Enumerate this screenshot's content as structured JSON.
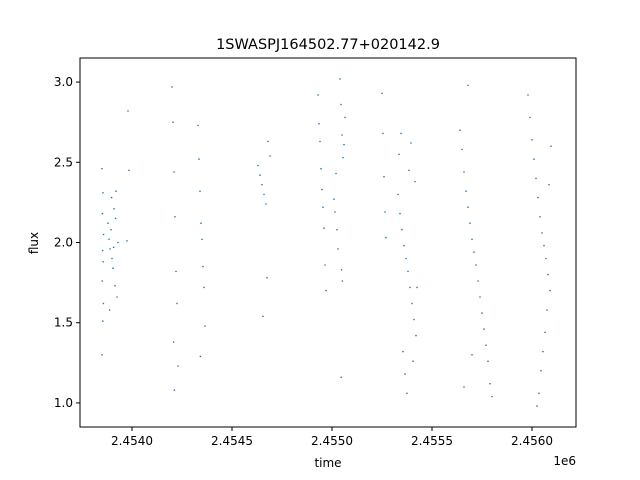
{
  "chart_data": {
    "type": "scatter",
    "title": "1SWASPJ164502.77+020142.9",
    "xlabel": "time",
    "ylabel": "flux",
    "x_offset_label": "1e6",
    "xlim": [
      2453740,
      2456220
    ],
    "ylim": [
      0.85,
      3.15
    ],
    "x_ticks": [
      2454000,
      2454500,
      2455000,
      2455500,
      2456000
    ],
    "x_tick_labels": [
      "2.4540",
      "2.4545",
      "2.4550",
      "2.4555",
      "2.4560"
    ],
    "y_ticks": [
      1.0,
      1.5,
      2.0,
      2.5,
      3.0
    ],
    "y_tick_labels": [
      "1.0",
      "1.5",
      "2.0",
      "2.5",
      "3.0"
    ],
    "grid": false,
    "marker_color": "#1f77b4",
    "series": [
      {
        "values_note": "",
        "points": [
          [
            2453850,
            2.46
          ],
          [
            2453855,
            2.31
          ],
          [
            2453852,
            2.18
          ],
          [
            2453858,
            2.05
          ],
          [
            2453853,
            1.95
          ],
          [
            2453856,
            1.88
          ],
          [
            2453851,
            1.76
          ],
          [
            2453857,
            1.62
          ],
          [
            2453854,
            1.51
          ],
          [
            2453850,
            1.3
          ],
          [
            2453880,
            2.12
          ],
          [
            2453885,
            2.02
          ],
          [
            2453890,
            1.96
          ],
          [
            2453895,
            2.08
          ],
          [
            2453900,
            1.9
          ],
          [
            2453905,
            1.84
          ],
          [
            2453910,
            2.21
          ],
          [
            2453915,
            1.73
          ],
          [
            2453920,
            2.32
          ],
          [
            2453925,
            1.66
          ],
          [
            2453930,
            2.0
          ],
          [
            2453888,
            1.58
          ],
          [
            2453898,
            2.28
          ],
          [
            2453908,
            1.97
          ],
          [
            2453918,
            2.15
          ],
          [
            2453980,
            2.82
          ],
          [
            2453985,
            2.45
          ],
          [
            2453975,
            2.01
          ],
          [
            2454200,
            2.97
          ],
          [
            2454205,
            2.75
          ],
          [
            2454210,
            2.44
          ],
          [
            2454215,
            2.16
          ],
          [
            2454220,
            1.82
          ],
          [
            2454225,
            1.62
          ],
          [
            2454230,
            1.23
          ],
          [
            2454212,
            1.08
          ],
          [
            2454208,
            1.38
          ],
          [
            2454330,
            2.73
          ],
          [
            2454335,
            2.52
          ],
          [
            2454340,
            2.32
          ],
          [
            2454345,
            2.12
          ],
          [
            2454350,
            2.02
          ],
          [
            2454355,
            1.85
          ],
          [
            2454360,
            1.72
          ],
          [
            2454365,
            1.48
          ],
          [
            2454342,
            1.29
          ],
          [
            2454630,
            2.48
          ],
          [
            2454640,
            2.42
          ],
          [
            2454650,
            2.36
          ],
          [
            2454660,
            2.3
          ],
          [
            2454670,
            2.24
          ],
          [
            2454680,
            2.63
          ],
          [
            2454690,
            2.54
          ],
          [
            2454655,
            1.54
          ],
          [
            2454675,
            1.78
          ],
          [
            2454930,
            2.92
          ],
          [
            2454935,
            2.74
          ],
          [
            2454940,
            2.63
          ],
          [
            2454945,
            2.46
          ],
          [
            2454950,
            2.33
          ],
          [
            2454955,
            2.22
          ],
          [
            2454960,
            2.09
          ],
          [
            2454965,
            1.86
          ],
          [
            2454970,
            1.7
          ],
          [
            2455010,
            2.27
          ],
          [
            2455015,
            2.19
          ],
          [
            2455020,
            2.43
          ],
          [
            2455025,
            2.08
          ],
          [
            2455030,
            1.96
          ],
          [
            2455040,
            3.02
          ],
          [
            2455045,
            2.86
          ],
          [
            2455050,
            2.67
          ],
          [
            2455055,
            2.53
          ],
          [
            2455060,
            2.61
          ],
          [
            2455065,
            2.78
          ],
          [
            2455048,
            1.83
          ],
          [
            2455052,
            1.76
          ],
          [
            2455046,
            1.16
          ],
          [
            2455250,
            2.93
          ],
          [
            2455255,
            2.68
          ],
          [
            2455260,
            2.41
          ],
          [
            2455265,
            2.19
          ],
          [
            2455270,
            2.03
          ],
          [
            2455330,
            2.3
          ],
          [
            2455340,
            2.18
          ],
          [
            2455350,
            2.08
          ],
          [
            2455360,
            1.98
          ],
          [
            2455370,
            1.9
          ],
          [
            2455380,
            1.82
          ],
          [
            2455390,
            1.72
          ],
          [
            2455400,
            1.62
          ],
          [
            2455410,
            1.52
          ],
          [
            2455420,
            1.42
          ],
          [
            2455335,
            2.55
          ],
          [
            2455345,
            2.68
          ],
          [
            2455355,
            1.32
          ],
          [
            2455365,
            1.18
          ],
          [
            2455375,
            1.06
          ],
          [
            2455385,
            2.45
          ],
          [
            2455395,
            2.62
          ],
          [
            2455405,
            1.26
          ],
          [
            2455415,
            2.38
          ],
          [
            2455425,
            1.72
          ],
          [
            2455640,
            2.7
          ],
          [
            2455650,
            2.58
          ],
          [
            2455660,
            2.44
          ],
          [
            2455670,
            2.32
          ],
          [
            2455680,
            2.22
          ],
          [
            2455690,
            2.12
          ],
          [
            2455700,
            2.02
          ],
          [
            2455710,
            1.94
          ],
          [
            2455720,
            1.86
          ],
          [
            2455730,
            1.76
          ],
          [
            2455740,
            1.66
          ],
          [
            2455750,
            1.56
          ],
          [
            2455760,
            1.46
          ],
          [
            2455770,
            1.36
          ],
          [
            2455780,
            1.26
          ],
          [
            2455790,
            1.12
          ],
          [
            2455800,
            1.04
          ],
          [
            2455660,
            1.1
          ],
          [
            2455680,
            2.98
          ],
          [
            2455700,
            1.3
          ],
          [
            2455980,
            2.92
          ],
          [
            2455990,
            2.78
          ],
          [
            2456000,
            2.64
          ],
          [
            2456010,
            2.52
          ],
          [
            2456020,
            2.4
          ],
          [
            2456030,
            2.28
          ],
          [
            2456040,
            2.16
          ],
          [
            2456050,
            2.06
          ],
          [
            2456060,
            1.98
          ],
          [
            2456070,
            1.9
          ],
          [
            2456080,
            1.8
          ],
          [
            2456090,
            1.7
          ],
          [
            2456075,
            1.58
          ],
          [
            2456065,
            1.44
          ],
          [
            2456055,
            1.32
          ],
          [
            2456045,
            1.2
          ],
          [
            2456035,
            1.06
          ],
          [
            2456025,
            0.98
          ],
          [
            2456085,
            2.36
          ],
          [
            2456095,
            2.6
          ]
        ]
      }
    ]
  }
}
